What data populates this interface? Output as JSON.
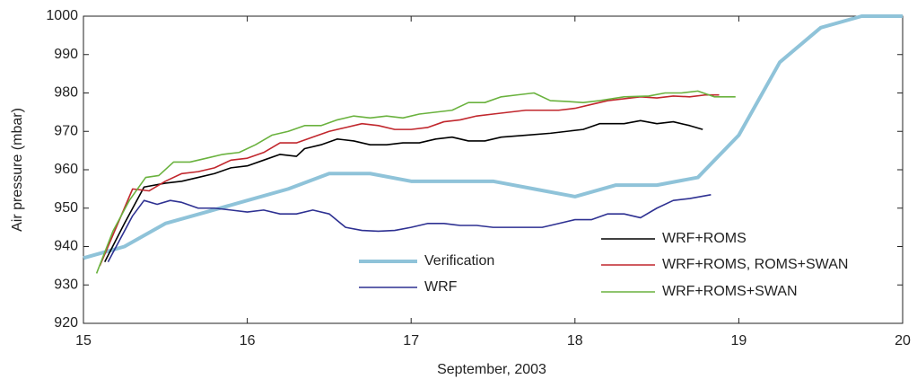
{
  "chart_data": {
    "type": "line",
    "xlabel": "September, 2003",
    "ylabel": "Air pressure (mbar)",
    "xlim": [
      15,
      20
    ],
    "xticks": [
      15,
      16,
      17,
      18,
      19,
      20
    ],
    "ylim": [
      920,
      1000
    ],
    "yticks": [
      920,
      930,
      940,
      950,
      960,
      970,
      980,
      990,
      1000
    ],
    "series": [
      {
        "name": "Verification",
        "color": "#8fc3d9",
        "x": [
          15,
          15.25,
          15.5,
          15.75,
          16,
          16.25,
          16.5,
          16.75,
          17,
          17.25,
          17.5,
          17.75,
          18,
          18.25,
          18.5,
          18.75,
          19,
          19.25,
          19.5,
          19.75,
          20
        ],
        "values": [
          937,
          940,
          946,
          949,
          952,
          955,
          959,
          959,
          957,
          957,
          957,
          955,
          953,
          956,
          956,
          958,
          969,
          988,
          997,
          1000,
          1000
        ]
      },
      {
        "name": "WRF",
        "color": "#2e3192",
        "x": [
          15.15,
          15.3,
          15.37,
          15.45,
          15.53,
          15.6,
          15.7,
          15.8,
          15.9,
          16,
          16.1,
          16.2,
          16.3,
          16.4,
          16.5,
          16.6,
          16.7,
          16.8,
          16.9,
          17,
          17.1,
          17.2,
          17.3,
          17.4,
          17.5,
          17.6,
          17.7,
          17.8,
          17.9,
          18,
          18.1,
          18.2,
          18.3,
          18.4,
          18.5,
          18.6,
          18.7,
          18.83
        ],
        "values": [
          936,
          948,
          952,
          951,
          952,
          951.5,
          950,
          950,
          949.5,
          949,
          949.5,
          948.5,
          948.5,
          949.5,
          948.5,
          945,
          944.2,
          944,
          944.2,
          945,
          946,
          946,
          945.5,
          945.5,
          945,
          945,
          945,
          945,
          946,
          947,
          947,
          948.5,
          948.5,
          947.5,
          950,
          952,
          952.5,
          953.5
        ]
      },
      {
        "name": "WRF+ROMS",
        "color": "#000000",
        "x": [
          15.13,
          15.25,
          15.37,
          15.5,
          15.6,
          15.7,
          15.8,
          15.9,
          16,
          16.1,
          16.2,
          16.3,
          16.35,
          16.45,
          16.55,
          16.65,
          16.75,
          16.85,
          16.95,
          17.05,
          17.15,
          17.25,
          17.35,
          17.45,
          17.55,
          17.7,
          17.85,
          17.95,
          18.05,
          18.15,
          18.3,
          18.4,
          18.5,
          18.6,
          18.7,
          18.78
        ],
        "values": [
          936,
          946,
          955.5,
          956.5,
          957,
          958,
          959,
          960.5,
          961,
          962.5,
          964,
          963.5,
          965.5,
          966.5,
          968,
          967.5,
          966.5,
          966.5,
          967,
          967,
          968,
          968.5,
          967.5,
          967.5,
          968.5,
          969,
          969.5,
          970,
          970.5,
          972,
          972,
          972.8,
          972,
          972.5,
          971.5,
          970.5
        ]
      },
      {
        "name": "WRF+ROMS, ROMS+SWAN",
        "color": "#c1272d",
        "x": [
          15.1,
          15.2,
          15.3,
          15.4,
          15.5,
          15.6,
          15.7,
          15.8,
          15.9,
          16,
          16.1,
          16.2,
          16.3,
          16.4,
          16.5,
          16.6,
          16.7,
          16.8,
          16.9,
          17,
          17.1,
          17.2,
          17.3,
          17.4,
          17.5,
          17.6,
          17.7,
          17.8,
          17.9,
          18,
          18.1,
          18.2,
          18.3,
          18.4,
          18.5,
          18.6,
          18.7,
          18.8,
          18.88
        ],
        "values": [
          935,
          945,
          955,
          954.5,
          957,
          959,
          959.5,
          960.5,
          962.5,
          963,
          964.5,
          967,
          967,
          968.5,
          970,
          971,
          972,
          971.5,
          970.5,
          970.5,
          971,
          972.5,
          973,
          974,
          974.5,
          975,
          975.5,
          975.5,
          975.5,
          976,
          977,
          978,
          978.5,
          979,
          978.7,
          979.2,
          979,
          979.5,
          979.5
        ]
      },
      {
        "name": "WRF+ROMS+SWAN",
        "color": "#6ab23e",
        "x": [
          15.08,
          15.18,
          15.28,
          15.38,
          15.46,
          15.55,
          15.65,
          15.75,
          15.85,
          15.95,
          16.05,
          16.15,
          16.25,
          16.35,
          16.45,
          16.55,
          16.65,
          16.75,
          16.85,
          16.95,
          17.05,
          17.15,
          17.25,
          17.35,
          17.45,
          17.55,
          17.65,
          17.75,
          17.85,
          17.95,
          18.05,
          18.15,
          18.3,
          18.45,
          18.55,
          18.65,
          18.75,
          18.85,
          18.98
        ],
        "values": [
          933,
          944,
          952,
          958,
          958.5,
          962,
          962,
          963,
          964,
          964.5,
          966.5,
          969,
          970,
          971.5,
          971.5,
          973,
          974,
          973.5,
          974,
          973.5,
          974.5,
          975,
          975.5,
          977.5,
          977.5,
          979,
          979.5,
          980,
          978,
          977.8,
          977.5,
          978,
          979,
          979.2,
          980,
          980,
          980.5,
          979,
          979
        ]
      }
    ]
  }
}
